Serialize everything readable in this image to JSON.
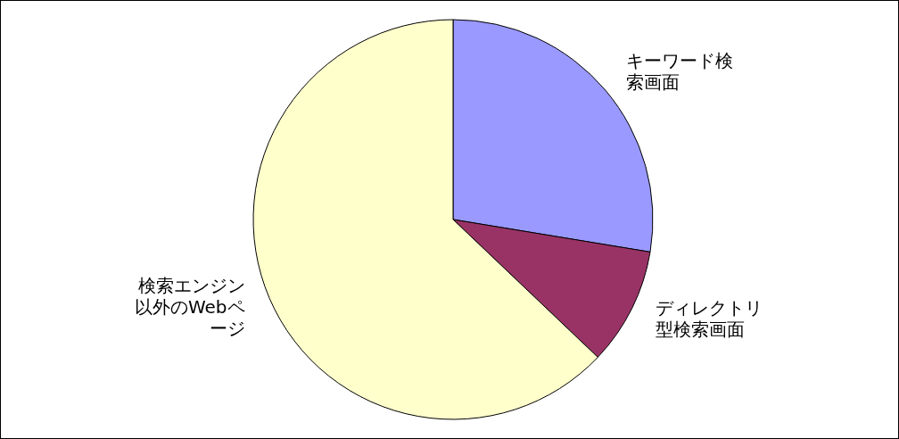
{
  "chart_data": {
    "type": "pie",
    "categories": [
      "キーワード検索画面",
      "ディレクトリ型検索画面",
      "検索エンジン以外のWebページ"
    ],
    "values": [
      27.6,
      9.5,
      62.9
    ],
    "colors": [
      "#9999ff",
      "#993366",
      "#ffffcc"
    ]
  }
}
